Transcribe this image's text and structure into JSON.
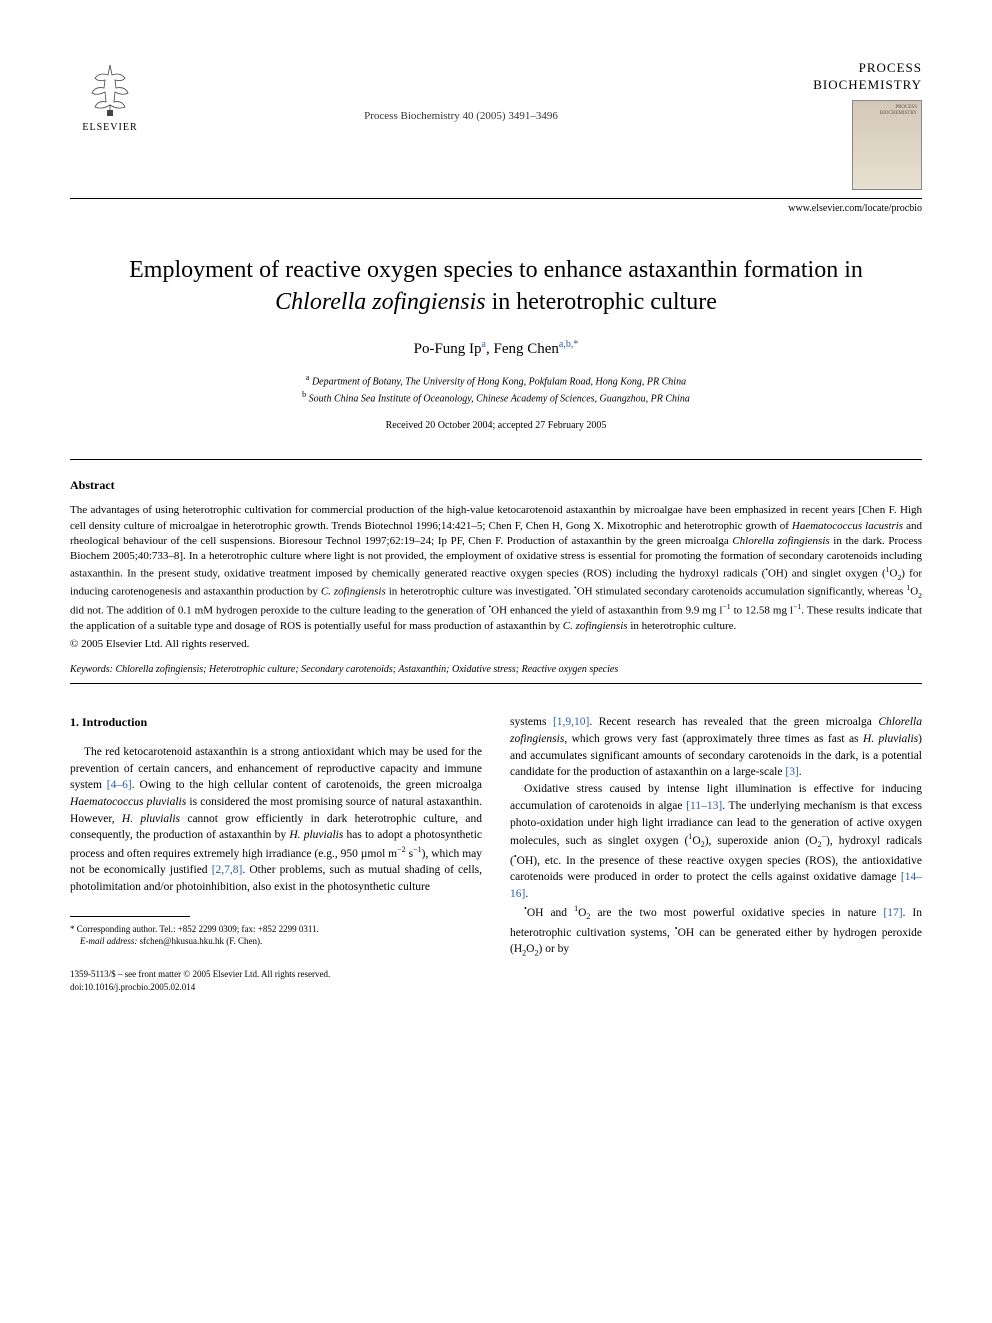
{
  "publisher": {
    "name": "ELSEVIER"
  },
  "journal": {
    "reference": "Process Biochemistry 40 (2005) 3491–3496",
    "name_line1": "PROCESS",
    "name_line2": "BIOCHEMISTRY",
    "url": "www.elsevier.com/locate/procbio",
    "cover_line1": "PROCESS",
    "cover_line2": "BIOCHEMISTRY"
  },
  "title_html": "Employment of reactive oxygen species to enhance astaxanthin formation in <em>Chlorella zofingiensis</em> in heterotrophic culture",
  "authors_html": "Po-Fung Ip<sup>a</sup>, Feng Chen<sup>a,b,*</sup>",
  "affiliations": {
    "a": "Department of Botany, The University of Hong Kong, Pokfulam Road, Hong Kong, PR China",
    "b": "South China Sea Institute of Oceanology, Chinese Academy of Sciences, Guangzhou, PR China"
  },
  "dates": "Received 20 October 2004; accepted 27 February 2005",
  "abstract": {
    "heading": "Abstract",
    "body_html": "The advantages of using heterotrophic cultivation for commercial production of the high-value ketocarotenoid astaxanthin by microalgae have been emphasized in recent years [Chen F. High cell density culture of microalgae in heterotrophic growth. Trends Biotechnol 1996;14:421–5; Chen F, Chen H, Gong X. Mixotrophic and heterotrophic growth of <em>Haematococcus lacustris</em> and rheological behaviour of the cell suspensions. Bioresour Technol 1997;62:19–24; Ip PF, Chen F. Production of astaxanthin by the green microalga <em>Chlorella zofingiensis</em> in the dark. Process Biochem 2005;40:733–8]. In a heterotrophic culture where light is not provided, the employment of oxidative stress is essential for promoting the formation of secondary carotenoids including astaxanthin. In the present study, oxidative treatment imposed by chemically generated reactive oxygen species (ROS) including the hydroxyl radicals (<sup>•</sup>OH) and singlet oxygen (<sup>1</sup>O<sub>2</sub>) for inducing carotenogenesis and astaxanthin production by <em>C. zofingiensis</em> in heterotrophic culture was investigated. <sup>•</sup>OH stimulated secondary carotenoids accumulation significantly, whereas <sup>1</sup>O<sub>2</sub> did not. The addition of 0.1 mM hydrogen peroxide to the culture leading to the generation of <sup>•</sup>OH enhanced the yield of astaxanthin from 9.9 mg l<sup>−1</sup> to 12.58 mg l<sup>−1</sup>. These results indicate that the application of a suitable type and dosage of ROS is potentially useful for mass production of astaxanthin by <em>C. zofingiensis</em> in heterotrophic culture.",
    "copyright": "© 2005 Elsevier Ltd. All rights reserved."
  },
  "keywords": {
    "label": "Keywords:",
    "text_html": "<em>Chlorella zofingiensis</em>; Heterotrophic culture; Secondary carotenoids; Astaxanthin; Oxidative stress; Reactive oxygen species"
  },
  "intro": {
    "heading": "1. Introduction",
    "col1_p1_html": "The red ketocarotenoid astaxanthin is a strong antioxidant which may be used for the prevention of certain cancers, and enhancement of reproductive capacity and immune system <span class=\"ref\">[4–6]</span>. Owing to the high cellular content of carotenoids, the green microalga <em>Haematococcus pluvialis</em> is considered the most promising source of natural astaxanthin. However, <em>H. pluvialis</em> cannot grow efficiently in dark heterotrophic culture, and consequently, the production of astaxanthin by <em>H. pluvialis</em> has to adopt a photosynthetic process and often requires extremely high irradiance (e.g., 950 µmol m<sup>−2</sup> s<sup>−1</sup>), which may not be economically justified <span class=\"ref\">[2,7,8]</span>. Other problems, such as mutual shading of cells, photolimitation and/or photoinhibition, also exist in the photosynthetic culture",
    "col2_p1_html": "systems <span class=\"ref\">[1,9,10]</span>. Recent research has revealed that the green microalga <em>Chlorella zofingiensis</em>, which grows very fast (approximately three times as fast as <em>H. pluvialis</em>) and accumulates significant amounts of secondary carotenoids in the dark, is a potential candidate for the production of astaxanthin on a large-scale <span class=\"ref\">[3]</span>.",
    "col2_p2_html": "Oxidative stress caused by intense light illumination is effective for inducing accumulation of carotenoids in algae <span class=\"ref\">[11–13]</span>. The underlying mechanism is that excess photo-oxidation under high light irradiance can lead to the generation of active oxygen molecules, such as singlet oxygen (<sup>1</sup>O<sub>2</sub>), superoxide anion (O<sub>2</sub><sup>−</sup>), hydroxyl radicals (<sup>•</sup>OH), etc. In the presence of these reactive oxygen species (ROS), the antioxidative carotenoids were produced in order to protect the cells against oxidative damage <span class=\"ref\">[14–16]</span>.",
    "col2_p3_html": "<sup>•</sup>OH and <sup>1</sup>O<sub>2</sub> are the two most powerful oxidative species in nature <span class=\"ref\">[17]</span>. In heterotrophic cultivation systems, <sup>•</sup>OH can be generated either by hydrogen peroxide (H<sub>2</sub>O<sub>2</sub>) or by"
  },
  "footnote": {
    "corr_html": "* Corresponding author. Tel.: +852 2299 0309; fax: +852 2299 0311.",
    "email_html": "<em>E-mail address:</em> sfchen@hkusua.hku.hk (F. Chen)."
  },
  "footer": {
    "issn": "1359-5113/$ – see front matter © 2005 Elsevier Ltd. All rights reserved.",
    "doi": "doi:10.1016/j.procbio.2005.02.014"
  }
}
